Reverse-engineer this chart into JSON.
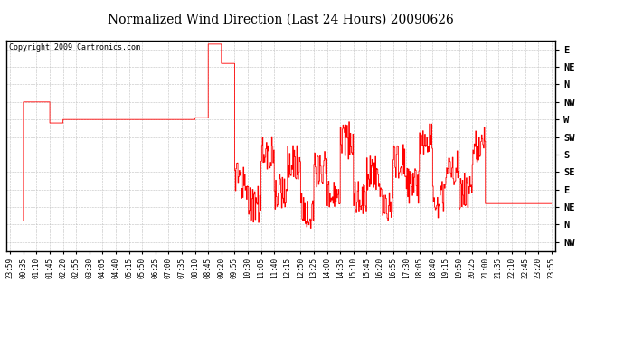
{
  "title": "Normalized Wind Direction (Last 24 Hours) 20090626",
  "copyright_text": "Copyright 2009 Cartronics.com",
  "line_color": "#ff0000",
  "background_color": "#ffffff",
  "grid_color": "#c0c0c0",
  "border_color": "#000000",
  "title_fontsize": 10,
  "copyright_fontsize": 6,
  "ytick_labels_right": [
    "E",
    "NE",
    "N",
    "NW",
    "W",
    "SW",
    "S",
    "SE",
    "E",
    "NE",
    "N",
    "NW"
  ],
  "ytick_values": [
    12,
    11,
    10,
    9,
    8,
    7,
    6,
    5,
    4,
    3,
    2,
    1
  ],
  "ylim": [
    0.5,
    12.5
  ],
  "xtick_labels": [
    "23:59",
    "00:35",
    "01:10",
    "01:45",
    "02:20",
    "02:55",
    "03:30",
    "04:05",
    "04:40",
    "05:15",
    "05:50",
    "06:25",
    "07:00",
    "07:35",
    "08:10",
    "08:45",
    "09:20",
    "09:55",
    "10:30",
    "11:05",
    "11:40",
    "12:15",
    "12:50",
    "13:25",
    "14:00",
    "14:35",
    "15:10",
    "15:45",
    "16:20",
    "16:55",
    "17:30",
    "18:05",
    "18:40",
    "19:15",
    "19:50",
    "20:25",
    "21:00",
    "21:35",
    "22:10",
    "22:45",
    "23:20",
    "23:55"
  ]
}
